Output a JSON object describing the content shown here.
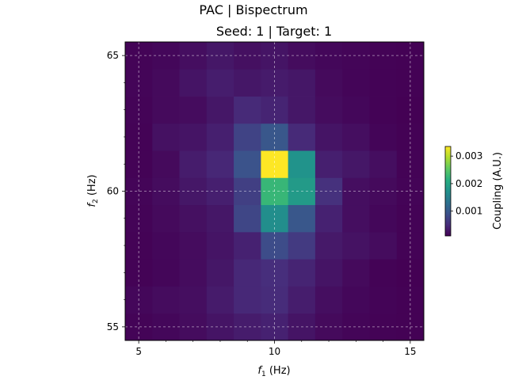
{
  "chart_data": {
    "type": "heatmap",
    "title": "PAC | Bispectrum",
    "subtitle": "Seed: 1 | Target: 1",
    "xlabel_sym": "f",
    "xlabel_sub": "1",
    "xlabel_unit": " (Hz)",
    "ylabel_sym": "f",
    "ylabel_sub": "2",
    "ylabel_unit": " (Hz)",
    "x_ticks": [
      5,
      10,
      15
    ],
    "y_ticks": [
      55,
      60,
      65
    ],
    "xlim": [
      4.5,
      15.5
    ],
    "ylim": [
      54.5,
      65.5
    ],
    "grid": true,
    "colormap": "viridis",
    "colorbar": {
      "label": "Coupling (A.U.)",
      "ticks": [
        0.001,
        0.002,
        0.003
      ],
      "tick_labels": [
        "0.001",
        "0.002",
        "0.003"
      ],
      "range": [
        0.0001,
        0.00335
      ]
    },
    "x_centers": [
      5,
      6,
      7,
      8,
      9,
      10,
      11,
      12,
      13,
      14,
      15
    ],
    "y_centers": [
      55,
      56,
      57,
      58,
      59,
      60,
      61,
      62,
      63,
      64,
      65
    ],
    "values": [
      [
        0.00013,
        0.00016,
        0.0002,
        0.00028,
        0.00035,
        0.0004,
        0.00028,
        0.00018,
        0.00014,
        0.00012,
        0.00011
      ],
      [
        0.00016,
        0.0002,
        0.00022,
        0.00034,
        0.00046,
        0.0005,
        0.00036,
        0.00022,
        0.00016,
        0.00013,
        0.00011
      ],
      [
        0.00012,
        0.00015,
        0.0002,
        0.0003,
        0.00046,
        0.00052,
        0.00042,
        0.00028,
        0.00018,
        0.00012,
        0.0001
      ],
      [
        0.00012,
        0.00016,
        0.0002,
        0.00028,
        0.0004,
        0.00085,
        0.00065,
        0.00032,
        0.00026,
        0.0002,
        0.00012
      ],
      [
        0.00013,
        0.00018,
        0.00024,
        0.0003,
        0.00078,
        0.00168,
        0.00098,
        0.0004,
        0.00022,
        0.00016,
        0.00012
      ],
      [
        0.00014,
        0.0002,
        0.0003,
        0.00038,
        0.0007,
        0.00225,
        0.00185,
        0.00055,
        0.00022,
        0.00018,
        0.00013
      ],
      [
        0.00012,
        0.00018,
        0.00035,
        0.00045,
        0.00092,
        0.00335,
        0.00175,
        0.00038,
        0.0003,
        0.00022,
        0.00012
      ],
      [
        0.00012,
        0.00025,
        0.00028,
        0.00038,
        0.00075,
        0.00098,
        0.00048,
        0.00028,
        0.00022,
        0.00014,
        0.00011
      ],
      [
        0.00013,
        0.00018,
        0.0002,
        0.0003,
        0.00048,
        0.00042,
        0.0003,
        0.0002,
        0.00016,
        0.00012,
        0.0001
      ],
      [
        0.00014,
        0.00018,
        0.00028,
        0.00036,
        0.0003,
        0.00034,
        0.0003,
        0.00018,
        0.00014,
        0.00012,
        0.00011
      ],
      [
        0.00013,
        0.00016,
        0.00022,
        0.0003,
        0.00024,
        0.00028,
        0.0002,
        0.00016,
        0.00014,
        0.00012,
        0.00011
      ]
    ]
  }
}
